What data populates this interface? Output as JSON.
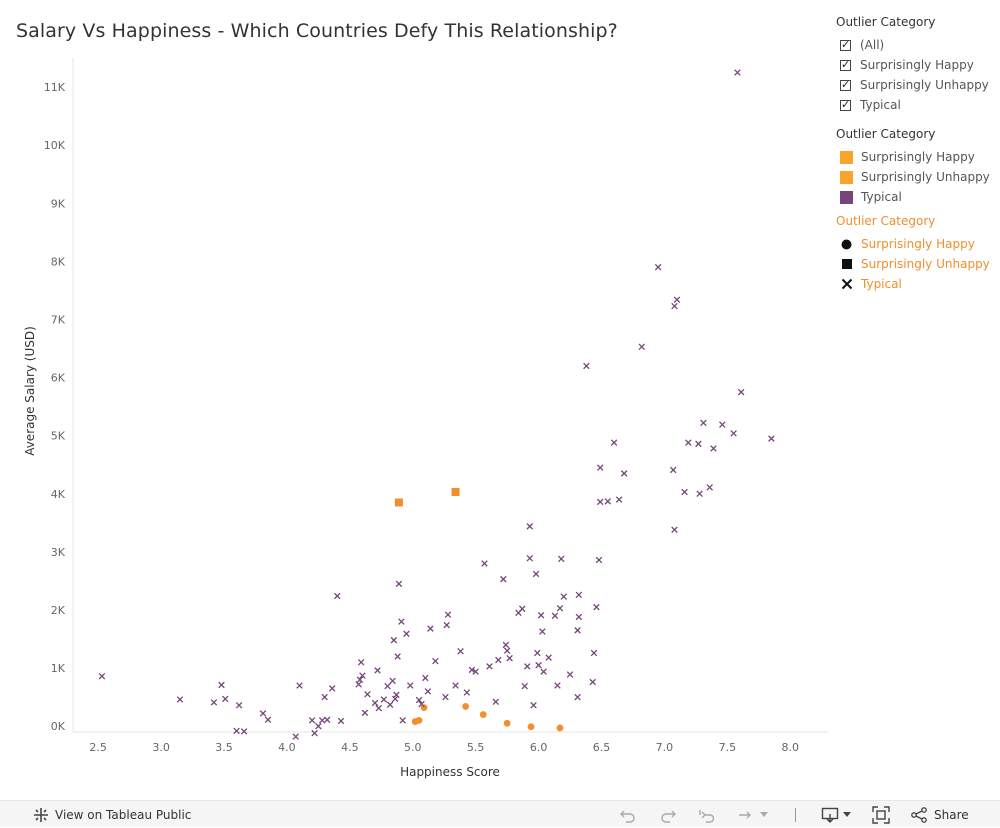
{
  "title": "Salary Vs Happiness - Which Countries Defy This Relationship?",
  "chart_data": {
    "type": "scatter",
    "xlabel": "Happiness Score",
    "ylabel": "Average Salary (USD)",
    "xlim": [
      2.3,
      8.3
    ],
    "ylim": [
      -100,
      11500
    ],
    "xticks": [
      "2.5",
      "3.0",
      "3.5",
      "4.0",
      "4.5",
      "5.0",
      "5.5",
      "6.0",
      "6.5",
      "7.0",
      "7.5",
      "8.0"
    ],
    "yticks": [
      "0K",
      "1K",
      "2K",
      "3K",
      "4K",
      "5K",
      "6K",
      "7K",
      "8K",
      "9K",
      "10K",
      "11K"
    ],
    "grid": "off",
    "series": [
      {
        "name": "Surprisingly Happy",
        "color": "#f28e2b",
        "shape": "circle",
        "points": [
          [
            5.02,
            80
          ],
          [
            5.05,
            100
          ],
          [
            5.09,
            320
          ],
          [
            5.42,
            340
          ],
          [
            5.56,
            200
          ],
          [
            5.75,
            50
          ],
          [
            5.94,
            -10
          ],
          [
            6.17,
            -30
          ]
        ]
      },
      {
        "name": "Surprisingly Unhappy",
        "color": "#f28e2b",
        "shape": "square",
        "points": [
          [
            4.89,
            3850
          ],
          [
            5.34,
            4030
          ]
        ]
      },
      {
        "name": "Typical",
        "color": "#76457a",
        "shape": "x",
        "points": [
          [
            2.53,
            860
          ],
          [
            3.15,
            460
          ],
          [
            3.42,
            410
          ],
          [
            3.48,
            710
          ],
          [
            3.51,
            470
          ],
          [
            3.6,
            -80
          ],
          [
            3.62,
            360
          ],
          [
            3.66,
            -90
          ],
          [
            3.81,
            220
          ],
          [
            3.85,
            110
          ],
          [
            4.07,
            -180
          ],
          [
            4.1,
            700
          ],
          [
            4.2,
            100
          ],
          [
            4.22,
            -120
          ],
          [
            4.25,
            0
          ],
          [
            4.28,
            100
          ],
          [
            4.3,
            500
          ],
          [
            4.32,
            110
          ],
          [
            4.36,
            650
          ],
          [
            4.4,
            2240
          ],
          [
            4.43,
            90
          ],
          [
            4.57,
            720
          ],
          [
            4.58,
            800
          ],
          [
            4.59,
            1100
          ],
          [
            4.6,
            870
          ],
          [
            4.62,
            230
          ],
          [
            4.64,
            550
          ],
          [
            4.7,
            400
          ],
          [
            4.72,
            960
          ],
          [
            4.73,
            310
          ],
          [
            4.77,
            460
          ],
          [
            4.8,
            690
          ],
          [
            4.82,
            370
          ],
          [
            4.84,
            780
          ],
          [
            4.85,
            1480
          ],
          [
            4.86,
            470
          ],
          [
            4.87,
            540
          ],
          [
            4.88,
            1200
          ],
          [
            4.89,
            2450
          ],
          [
            4.91,
            1800
          ],
          [
            4.92,
            100
          ],
          [
            4.95,
            1590
          ],
          [
            4.98,
            700
          ],
          [
            5.05,
            450
          ],
          [
            5.07,
            380
          ],
          [
            5.1,
            830
          ],
          [
            5.12,
            600
          ],
          [
            5.14,
            1680
          ],
          [
            5.18,
            1120
          ],
          [
            5.26,
            500
          ],
          [
            5.27,
            1740
          ],
          [
            5.28,
            1920
          ],
          [
            5.34,
            700
          ],
          [
            5.38,
            1290
          ],
          [
            5.43,
            580
          ],
          [
            5.47,
            970
          ],
          [
            5.5,
            940
          ],
          [
            5.57,
            2800
          ],
          [
            5.61,
            1030
          ],
          [
            5.66,
            420
          ],
          [
            5.68,
            1140
          ],
          [
            5.72,
            2530
          ],
          [
            5.74,
            1400
          ],
          [
            5.75,
            1300
          ],
          [
            5.77,
            1170
          ],
          [
            5.84,
            1950
          ],
          [
            5.87,
            2020
          ],
          [
            5.89,
            690
          ],
          [
            5.91,
            1030
          ],
          [
            5.93,
            3440
          ],
          [
            5.93,
            2890
          ],
          [
            5.96,
            360
          ],
          [
            5.98,
            2620
          ],
          [
            5.99,
            1260
          ],
          [
            6.0,
            1050
          ],
          [
            6.02,
            1910
          ],
          [
            6.03,
            1630
          ],
          [
            6.04,
            940
          ],
          [
            6.08,
            1180
          ],
          [
            6.13,
            1900
          ],
          [
            6.15,
            700
          ],
          [
            6.17,
            2030
          ],
          [
            6.18,
            2880
          ],
          [
            6.2,
            2230
          ],
          [
            6.25,
            890
          ],
          [
            6.31,
            500
          ],
          [
            6.31,
            1650
          ],
          [
            6.32,
            2260
          ],
          [
            6.32,
            1880
          ],
          [
            6.38,
            6200
          ],
          [
            6.43,
            760
          ],
          [
            6.44,
            1260
          ],
          [
            6.46,
            2050
          ],
          [
            6.48,
            2860
          ],
          [
            6.49,
            3860
          ],
          [
            6.49,
            4450
          ],
          [
            6.55,
            3870
          ],
          [
            6.6,
            4880
          ],
          [
            6.64,
            3900
          ],
          [
            6.68,
            4350
          ],
          [
            6.95,
            7900
          ],
          [
            7.07,
            4410
          ],
          [
            7.08,
            7230
          ],
          [
            7.08,
            3380
          ],
          [
            7.1,
            7340
          ],
          [
            7.16,
            4030
          ],
          [
            7.19,
            4880
          ],
          [
            7.27,
            4860
          ],
          [
            7.28,
            4000
          ],
          [
            7.31,
            5220
          ],
          [
            7.36,
            4110
          ],
          [
            7.39,
            4780
          ],
          [
            7.46,
            5190
          ],
          [
            7.55,
            5040
          ],
          [
            7.58,
            11250
          ],
          [
            7.61,
            5750
          ],
          [
            7.85,
            4950
          ],
          [
            6.82,
            6530
          ]
        ]
      }
    ]
  },
  "filter_legend": {
    "title": "Outlier Category",
    "items": [
      "(All)",
      "Surprisingly Happy",
      "Surprisingly Unhappy",
      "Typical"
    ]
  },
  "color_legend": {
    "title": "Outlier Category",
    "items": [
      {
        "label": "Surprisingly Happy",
        "color": "#f8a52e"
      },
      {
        "label": "Surprisingly Unhappy",
        "color": "#f8a52e"
      },
      {
        "label": "Typical",
        "color": "#76457a"
      }
    ]
  },
  "shape_legend": {
    "title": "Outlier Category",
    "items": [
      {
        "label": "Surprisingly Happy",
        "icon": "circle-icon"
      },
      {
        "label": "Surprisingly Unhappy",
        "icon": "square-icon"
      },
      {
        "label": "Typical",
        "icon": "x-icon"
      }
    ]
  },
  "toolbar": {
    "view_label": "View on Tableau Public",
    "share_label": "Share"
  }
}
